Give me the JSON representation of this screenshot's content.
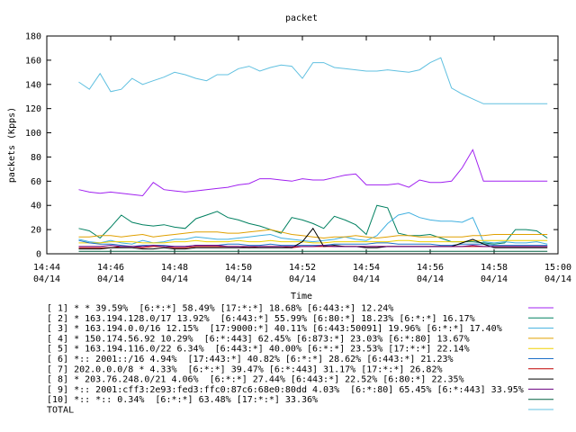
{
  "chart_data": {
    "type": "line",
    "title": "packet",
    "xlabel": "Time",
    "ylabel": "packets (Kpps)",
    "ylim": [
      0,
      180
    ],
    "yticks": [
      0,
      20,
      40,
      60,
      80,
      100,
      120,
      140,
      160,
      180
    ],
    "xlim": [
      "14:44",
      "15:00"
    ],
    "xticks": [
      {
        "time": "14:44",
        "date": "04/14"
      },
      {
        "time": "14:46",
        "date": "04/14"
      },
      {
        "time": "14:48",
        "date": "04/14"
      },
      {
        "time": "14:50",
        "date": "04/14"
      },
      {
        "time": "14:52",
        "date": "04/14"
      },
      {
        "time": "14:54",
        "date": "04/14"
      },
      {
        "time": "14:56",
        "date": "04/14"
      },
      {
        "time": "14:58",
        "date": "04/14"
      },
      {
        "time": "15:00",
        "date": "04/14"
      }
    ],
    "x": [
      "14:45:00",
      "14:45:20",
      "14:45:40",
      "14:46:00",
      "14:46:20",
      "14:46:40",
      "14:47:00",
      "14:47:20",
      "14:47:40",
      "14:48:00",
      "14:48:20",
      "14:48:40",
      "14:49:00",
      "14:49:20",
      "14:49:40",
      "14:50:00",
      "14:50:20",
      "14:50:40",
      "14:51:00",
      "14:51:20",
      "14:51:40",
      "14:52:00",
      "14:52:20",
      "14:52:40",
      "14:53:00",
      "14:53:20",
      "14:53:40",
      "14:54:00",
      "14:54:20",
      "14:54:40",
      "14:55:00",
      "14:55:20",
      "14:55:40",
      "14:56:00",
      "14:56:20",
      "14:56:40",
      "14:57:00",
      "14:57:20",
      "14:57:40",
      "14:58:00",
      "14:58:20",
      "14:58:40",
      "14:59:00",
      "14:59:20",
      "14:59:40"
    ],
    "grid": false,
    "series": [
      {
        "name": "[ 1]",
        "color": "#a020f0",
        "values": [
          53,
          51,
          50,
          51,
          50,
          49,
          48,
          59,
          53,
          52,
          51,
          52,
          53,
          54,
          55,
          57,
          58,
          62,
          62,
          61,
          60,
          62,
          61,
          61,
          63,
          65,
          66,
          57,
          57,
          57,
          58,
          55,
          61,
          59,
          59,
          60,
          71,
          86,
          60,
          60,
          60,
          60,
          60,
          60,
          60
        ]
      },
      {
        "name": "[ 2]",
        "color": "#008060",
        "values": [
          21,
          19,
          13,
          22,
          32,
          26,
          24,
          23,
          24,
          22,
          21,
          29,
          32,
          35,
          30,
          28,
          25,
          23,
          20,
          17,
          30,
          28,
          25,
          21,
          31,
          28,
          24,
          16,
          40,
          38,
          17,
          15,
          15,
          16,
          13,
          10,
          10,
          10,
          9,
          8,
          9,
          20,
          20,
          19,
          13
        ]
      },
      {
        "name": "[ 3]",
        "color": "#40b0e0",
        "values": [
          12,
          10,
          9,
          11,
          9,
          8,
          11,
          9,
          10,
          12,
          12,
          14,
          13,
          12,
          12,
          13,
          14,
          15,
          16,
          13,
          12,
          11,
          10,
          11,
          12,
          14,
          12,
          11,
          15,
          25,
          32,
          34,
          30,
          28,
          27,
          27,
          26,
          30,
          10,
          9,
          10,
          9,
          9,
          10,
          8
        ]
      },
      {
        "name": "[ 4]",
        "color": "#e0a000",
        "values": [
          14,
          14,
          15,
          15,
          14,
          15,
          16,
          14,
          15,
          16,
          17,
          18,
          18,
          18,
          17,
          17,
          18,
          19,
          20,
          18,
          16,
          15,
          14,
          13,
          14,
          14,
          15,
          14,
          13,
          14,
          15,
          15,
          14,
          14,
          14,
          14,
          14,
          15,
          15,
          16,
          16,
          16,
          16,
          16,
          16
        ]
      },
      {
        "name": "[ 5]",
        "color": "#f0d000",
        "values": [
          9,
          9,
          9,
          10,
          10,
          10,
          9,
          9,
          9,
          10,
          10,
          11,
          10,
          10,
          10,
          11,
          10,
          10,
          11,
          10,
          10,
          10,
          9,
          9,
          10,
          10,
          10,
          10,
          10,
          10,
          11,
          11,
          10,
          10,
          10,
          10,
          10,
          11,
          11,
          11,
          11,
          11,
          11,
          11,
          11
        ]
      },
      {
        "name": "[ 6]",
        "color": "#1e70c8",
        "values": [
          11,
          9,
          8,
          8,
          7,
          6,
          7,
          7,
          7,
          6,
          6,
          7,
          7,
          7,
          8,
          8,
          7,
          7,
          8,
          7,
          7,
          7,
          7,
          7,
          8,
          8,
          8,
          8,
          9,
          9,
          8,
          8,
          8,
          8,
          7,
          7,
          8,
          8,
          8,
          7,
          7,
          7,
          7,
          7,
          7
        ]
      },
      {
        "name": "[ 7]",
        "color": "#c00000",
        "values": [
          5,
          5,
          5,
          5,
          6,
          6,
          5,
          6,
          6,
          5,
          5,
          6,
          6,
          6,
          6,
          6,
          5,
          6,
          6,
          6,
          5,
          6,
          6,
          6,
          6,
          6,
          6,
          6,
          6,
          6,
          6,
          6,
          6,
          6,
          6,
          6,
          6,
          6,
          6,
          6,
          6,
          6,
          6,
          6,
          6
        ]
      },
      {
        "name": "[ 8]",
        "color": "#000000",
        "values": [
          4,
          4,
          4,
          5,
          5,
          5,
          4,
          4,
          5,
          4,
          4,
          5,
          5,
          5,
          5,
          5,
          5,
          5,
          5,
          5,
          5,
          10,
          21,
          6,
          7,
          6,
          6,
          5,
          5,
          6,
          6,
          6,
          6,
          6,
          6,
          6,
          9,
          12,
          8,
          5,
          5,
          5,
          5,
          5,
          5
        ]
      },
      {
        "name": "[ 9]",
        "color": "#6a0080",
        "values": [
          6,
          6,
          6,
          7,
          6,
          6,
          6,
          7,
          6,
          6,
          6,
          7,
          7,
          7,
          6,
          6,
          6,
          6,
          6,
          6,
          6,
          6,
          6,
          7,
          6,
          6,
          6,
          6,
          6,
          6,
          6,
          6,
          6,
          6,
          6,
          6,
          6,
          7,
          6,
          6,
          6,
          6,
          6,
          6,
          6
        ]
      },
      {
        "name": "[10]",
        "color": "#006040",
        "values": [
          2,
          2,
          2,
          2,
          2,
          2,
          2,
          2,
          2,
          2,
          2,
          2,
          2,
          2,
          2,
          2,
          2,
          2,
          2,
          2,
          2,
          2,
          2,
          2,
          2,
          2,
          2,
          2,
          2,
          2,
          2,
          2,
          2,
          2,
          2,
          2,
          2,
          2,
          2,
          2,
          2,
          2,
          2,
          2,
          2
        ]
      },
      {
        "name": "TOTAL",
        "color": "#60c0e0",
        "values": [
          142,
          136,
          149,
          134,
          136,
          145,
          140,
          143,
          146,
          150,
          148,
          145,
          143,
          148,
          148,
          153,
          155,
          151,
          154,
          156,
          155,
          145,
          158,
          158,
          154,
          153,
          152,
          151,
          151,
          152,
          151,
          150,
          152,
          158,
          162,
          137,
          132,
          128,
          124,
          124,
          124,
          124,
          124,
          124,
          124
        ]
      }
    ]
  },
  "legend": [
    {
      "text": "[ 1] * * 39.59%  [6:*:*] 58.49% [17:*:*] 18.68% [6:443:*] 12.24%",
      "color": "#a020f0"
    },
    {
      "text": "[ 2] * 163.194.128.0/17 13.92%  [6:443:*] 55.99% [6:80:*] 18.23% [6:*:*] 16.17%",
      "color": "#008060"
    },
    {
      "text": "[ 3] * 163.194.0.0/16 12.15%  [17:9000:*] 40.11% [6:443:50091] 19.96% [6:*:*] 17.40%",
      "color": "#40b0e0"
    },
    {
      "text": "[ 4] * 150.174.56.92 10.29%  [6:*:443] 62.45% [6:873:*] 23.03% [6:*:80] 13.67%",
      "color": "#e0a000"
    },
    {
      "text": "[ 5] * 163.194.116.0/22 6.34%  [6:443:*] 40.00% [6:*:*] 23.53% [17:*:*] 22.14%",
      "color": "#f0d000"
    },
    {
      "text": "[ 6] *:: 2001::/16 4.94%  [17:443:*] 40.82% [6:*:*] 28.62% [6:443:*] 21.23%",
      "color": "#1e70c8"
    },
    {
      "text": "[ 7] 202.0.0.0/8 * 4.33%  [6:*:*] 39.47% [6:*:443] 31.17% [17:*:*] 26.82%",
      "color": "#c00000"
    },
    {
      "text": "[ 8] * 203.76.248.0/21 4.06%  [6:*:*] 27.44% [6:443:*] 22.52% [6:80:*] 22.35%",
      "color": "#000000"
    },
    {
      "text": "[ 9] *:: 2001:cff3:2e93:fed3:ffc0:87c6:68e0:80dd 4.03%  [6:*:80] 65.45% [6:*:443] 33.95%",
      "color": "#6a0080"
    },
    {
      "text": "[10] *:: *:: 0.34%  [6:*:*] 63.48% [17:*:*] 33.36%",
      "color": "#006040"
    },
    {
      "text": "TOTAL",
      "color": "#60c0e0"
    }
  ]
}
